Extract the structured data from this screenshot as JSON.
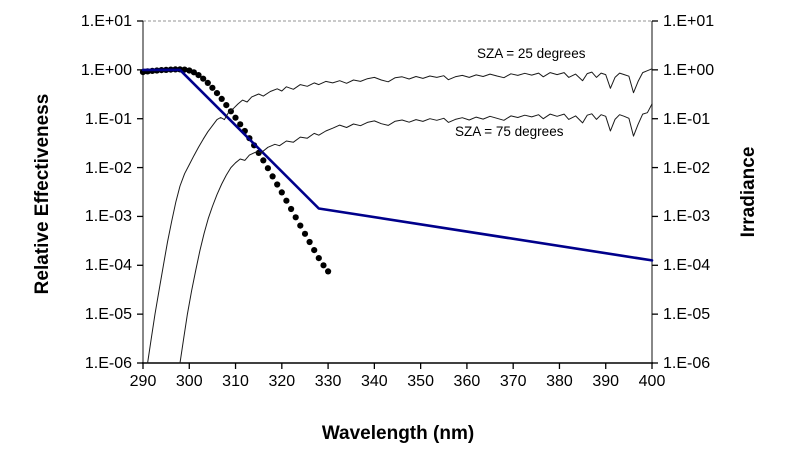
{
  "chart_data": {
    "type": "line",
    "title": "",
    "xlabel": "Wavelength (nm)",
    "ylabel_left": "Relative Effectiveness",
    "ylabel_right": "Irradiance",
    "x_range": [
      290,
      400
    ],
    "x_ticks": [
      290,
      300,
      310,
      320,
      330,
      340,
      350,
      360,
      370,
      380,
      390,
      400
    ],
    "y_scale": "log",
    "y_log_range": [
      -6,
      1
    ],
    "y_tick_exponents": [
      1,
      0,
      -1,
      -2,
      -3,
      -4,
      -5,
      -6
    ],
    "y_tick_labels": [
      "1.E+01",
      "1.E+00",
      "1.E-01",
      "1.E-02",
      "1.E-03",
      "1.E-04",
      "1.E-05",
      "1.E-06"
    ],
    "grid": "top-border-dashed-only",
    "legend_position": "none",
    "annotations": [
      {
        "text": "SZA = 25 degrees"
      },
      {
        "text": "SZA = 75 degrees"
      }
    ],
    "colors": {
      "action_dots": "#000000",
      "weighting_line": "#00008B",
      "irradiance_lines": "#1a1a1a",
      "frame": "#3a3a3a",
      "top_border": "#ababab"
    },
    "series": [
      {
        "name": "action-spectrum-dotted",
        "style": "dots",
        "color": "#000000",
        "points": [
          [
            290,
            0.9
          ],
          [
            291,
            0.93
          ],
          [
            292,
            0.95
          ],
          [
            293,
            0.97
          ],
          [
            294,
            0.99
          ],
          [
            295,
            1.0
          ],
          [
            296,
            1.01
          ],
          [
            297,
            1.02
          ],
          [
            298,
            1.02
          ],
          [
            299,
            1.01
          ],
          [
            300,
            0.97
          ],
          [
            301,
            0.89
          ],
          [
            302,
            0.78
          ],
          [
            303,
            0.66
          ],
          [
            304,
            0.54
          ],
          [
            305,
            0.43
          ],
          [
            306,
            0.335
          ],
          [
            307,
            0.255
          ],
          [
            308,
            0.19
          ],
          [
            309,
            0.142
          ],
          [
            310,
            0.105
          ],
          [
            311,
            0.077
          ],
          [
            312,
            0.056
          ],
          [
            313,
            0.04
          ],
          [
            314,
            0.0285
          ],
          [
            315,
            0.02
          ],
          [
            316,
            0.014
          ],
          [
            317,
            0.0097
          ],
          [
            318,
            0.0066
          ],
          [
            319,
            0.0045
          ],
          [
            320,
            0.0031
          ],
          [
            321,
            0.0021
          ],
          [
            322,
            0.00142
          ],
          [
            323,
            0.00096
          ],
          [
            324,
            0.00065
          ],
          [
            325,
            0.00044
          ],
          [
            326,
            0.0003
          ],
          [
            327,
            0.000205
          ],
          [
            328,
            0.00014
          ],
          [
            329,
            0.0001
          ],
          [
            330,
            7.5e-05
          ]
        ]
      },
      {
        "name": "erythema-weighting-line",
        "style": "line",
        "color": "#00008B",
        "width": 2.6,
        "points": [
          [
            290,
            1.0
          ],
          [
            298,
            1.0
          ],
          [
            328,
            0.00145
          ],
          [
            400,
            0.000126
          ]
        ]
      },
      {
        "name": "irradiance-sza25",
        "style": "thinline",
        "color": "#1a1a1a",
        "width": 1,
        "points": [
          [
            291,
            1e-06
          ],
          [
            291.8,
            3.2e-06
          ],
          [
            292.6,
            1e-05
          ],
          [
            293.5,
            3.2e-05
          ],
          [
            294.4,
            0.0001
          ],
          [
            295.3,
            0.0003
          ],
          [
            296.2,
            0.0008
          ],
          [
            297.1,
            0.002
          ],
          [
            298,
            0.0042
          ],
          [
            299,
            0.0075
          ],
          [
            300,
            0.0115
          ],
          [
            301,
            0.0175
          ],
          [
            302,
            0.026
          ],
          [
            303,
            0.038
          ],
          [
            304,
            0.054
          ],
          [
            305,
            0.072
          ],
          [
            306,
            0.096
          ],
          [
            306.8,
            0.106
          ],
          [
            307.6,
            0.096
          ],
          [
            308.5,
            0.135
          ],
          [
            309.5,
            0.16
          ],
          [
            310.5,
            0.2
          ],
          [
            311.5,
            0.24
          ],
          [
            312.5,
            0.22
          ],
          [
            313.5,
            0.28
          ],
          [
            315,
            0.32
          ],
          [
            316,
            0.29
          ],
          [
            317.5,
            0.36
          ],
          [
            319,
            0.41
          ],
          [
            320,
            0.37
          ],
          [
            321,
            0.45
          ],
          [
            322.5,
            0.4
          ],
          [
            324,
            0.5
          ],
          [
            325.5,
            0.46
          ],
          [
            327,
            0.54
          ],
          [
            328,
            0.5
          ],
          [
            329.5,
            0.58
          ],
          [
            331,
            0.54
          ],
          [
            332.5,
            0.6
          ],
          [
            334,
            0.53
          ],
          [
            335.5,
            0.62
          ],
          [
            337,
            0.58
          ],
          [
            338.5,
            0.66
          ],
          [
            340,
            0.7
          ],
          [
            341.5,
            0.62
          ],
          [
            343,
            0.57
          ],
          [
            344.5,
            0.69
          ],
          [
            346,
            0.72
          ],
          [
            347.5,
            0.65
          ],
          [
            349,
            0.73
          ],
          [
            350.5,
            0.67
          ],
          [
            352,
            0.75
          ],
          [
            353.5,
            0.7
          ],
          [
            355,
            0.76
          ],
          [
            356,
            0.63
          ],
          [
            357.5,
            0.72
          ],
          [
            359,
            0.77
          ],
          [
            360.5,
            0.7
          ],
          [
            362,
            0.79
          ],
          [
            363.5,
            0.73
          ],
          [
            365,
            0.82
          ],
          [
            366.5,
            0.75
          ],
          [
            368,
            0.69
          ],
          [
            369.5,
            0.83
          ],
          [
            371,
            0.77
          ],
          [
            372.5,
            0.85
          ],
          [
            374,
            0.78
          ],
          [
            375.5,
            0.86
          ],
          [
            376.5,
            0.72
          ],
          [
            378,
            0.88
          ],
          [
            379.5,
            0.8
          ],
          [
            381,
            0.88
          ],
          [
            382,
            0.7
          ],
          [
            383.5,
            0.82
          ],
          [
            385,
            0.6
          ],
          [
            386,
            0.84
          ],
          [
            387,
            0.9
          ],
          [
            388,
            0.7
          ],
          [
            389,
            0.86
          ],
          [
            390,
            0.8
          ],
          [
            391,
            0.42
          ],
          [
            392,
            0.7
          ],
          [
            393,
            0.86
          ],
          [
            394,
            0.8
          ],
          [
            395,
            0.74
          ],
          [
            396,
            0.34
          ],
          [
            397,
            0.58
          ],
          [
            398,
            0.88
          ],
          [
            399,
            0.96
          ],
          [
            400,
            1.05
          ]
        ]
      },
      {
        "name": "irradiance-sza75",
        "style": "thinline",
        "color": "#1a1a1a",
        "width": 1,
        "points": [
          [
            298,
            1e-06
          ],
          [
            298.8,
            3.2e-06
          ],
          [
            299.6,
            1e-05
          ],
          [
            300.5,
            3e-05
          ],
          [
            301.4,
            8e-05
          ],
          [
            302.3,
            0.0002
          ],
          [
            303.2,
            0.00045
          ],
          [
            304.1,
            0.0009
          ],
          [
            305,
            0.0016
          ],
          [
            306,
            0.0028
          ],
          [
            307,
            0.0046
          ],
          [
            308,
            0.007
          ],
          [
            309,
            0.01
          ],
          [
            310,
            0.0125
          ],
          [
            311,
            0.015
          ],
          [
            312,
            0.014
          ],
          [
            313,
            0.018
          ],
          [
            314.5,
            0.021
          ],
          [
            315.5,
            0.02
          ],
          [
            317,
            0.026
          ],
          [
            318.5,
            0.03
          ],
          [
            319.5,
            0.028
          ],
          [
            321,
            0.035
          ],
          [
            322.5,
            0.033
          ],
          [
            324,
            0.042
          ],
          [
            325.5,
            0.04
          ],
          [
            327,
            0.05
          ],
          [
            328,
            0.046
          ],
          [
            329.5,
            0.056
          ],
          [
            331,
            0.064
          ],
          [
            332.5,
            0.074
          ],
          [
            334,
            0.066
          ],
          [
            335.5,
            0.078
          ],
          [
            337,
            0.072
          ],
          [
            338.5,
            0.084
          ],
          [
            340,
            0.09
          ],
          [
            341.5,
            0.079
          ],
          [
            343,
            0.073
          ],
          [
            344.5,
            0.089
          ],
          [
            346,
            0.094
          ],
          [
            347.5,
            0.085
          ],
          [
            349,
            0.096
          ],
          [
            350.5,
            0.088
          ],
          [
            352,
            0.1
          ],
          [
            353.5,
            0.093
          ],
          [
            355,
            0.102
          ],
          [
            356,
            0.084
          ],
          [
            357.5,
            0.097
          ],
          [
            359,
            0.105
          ],
          [
            360.5,
            0.094
          ],
          [
            362,
            0.108
          ],
          [
            363.5,
            0.098
          ],
          [
            365,
            0.112
          ],
          [
            366.5,
            0.102
          ],
          [
            368,
            0.093
          ],
          [
            369.5,
            0.114
          ],
          [
            371,
            0.106
          ],
          [
            372.5,
            0.118
          ],
          [
            374,
            0.109
          ],
          [
            375.5,
            0.121
          ],
          [
            376.5,
            0.1
          ],
          [
            378,
            0.124
          ],
          [
            379.5,
            0.112
          ],
          [
            381,
            0.124
          ],
          [
            382,
            0.097
          ],
          [
            383.5,
            0.114
          ],
          [
            385,
            0.082
          ],
          [
            386,
            0.118
          ],
          [
            387,
            0.126
          ],
          [
            388,
            0.097
          ],
          [
            389,
            0.121
          ],
          [
            390,
            0.112
          ],
          [
            391,
            0.056
          ],
          [
            392,
            0.097
          ],
          [
            393,
            0.121
          ],
          [
            394,
            0.112
          ],
          [
            395,
            0.102
          ],
          [
            396,
            0.044
          ],
          [
            397,
            0.077
          ],
          [
            398,
            0.124
          ],
          [
            399,
            0.133
          ],
          [
            400,
            0.2
          ]
        ]
      }
    ]
  }
}
